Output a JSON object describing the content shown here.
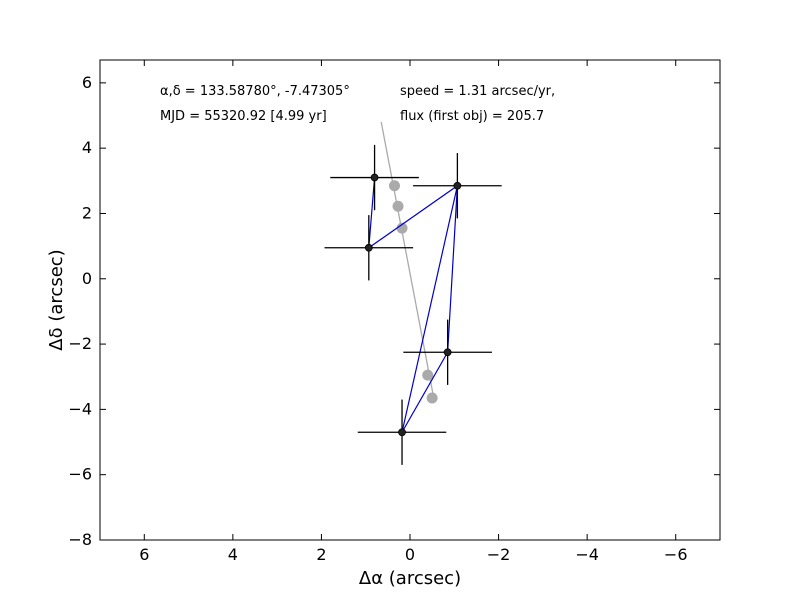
{
  "chart_data": {
    "type": "scatter",
    "xlabel": "Δα (arcsec)",
    "ylabel": "Δδ (arcsec)",
    "xlim": [
      7,
      -7
    ],
    "ylim": [
      -8,
      6.7
    ],
    "x_ticks": [
      6,
      4,
      2,
      0,
      -2,
      -4,
      -6
    ],
    "x_tick_labels": [
      "6",
      "4",
      "2",
      "0",
      "−2",
      "−4",
      "−6"
    ],
    "y_ticks": [
      -8,
      -6,
      -4,
      -2,
      0,
      2,
      4,
      6
    ],
    "y_tick_labels": [
      "−8",
      "−6",
      "−4",
      "−2",
      "0",
      "2",
      "4",
      "6"
    ],
    "grid": false,
    "annotations": {
      "coords": "α,δ = 133.58780°, -7.47305°",
      "mjd": "MJD = 55320.92 [4.99 yr]",
      "speed": "speed = 1.31 arcsec/yr,",
      "flux": "flux (first obj) = 205.7"
    },
    "observed": {
      "color": "#0000cc",
      "point_color": "#222222",
      "points": [
        {
          "x": 0.8,
          "y": 3.1,
          "xerr": 1.0,
          "yerr": 1.0
        },
        {
          "x": 0.93,
          "y": 0.95,
          "xerr": 1.0,
          "yerr": 1.0
        },
        {
          "x": -1.07,
          "y": 2.85,
          "xerr": 1.0,
          "yerr": 1.0
        },
        {
          "x": -0.85,
          "y": -2.25,
          "xerr": 1.0,
          "yerr": 1.0
        },
        {
          "x": 0.18,
          "y": -4.7,
          "xerr": 1.0,
          "yerr": 1.0
        }
      ],
      "path_order": [
        0,
        1,
        2,
        3,
        4,
        2
      ]
    },
    "model": {
      "color": "#aaaaaa",
      "line": [
        {
          "x": 0.65,
          "y": 4.8
        },
        {
          "x": -0.55,
          "y": -3.75
        }
      ],
      "points": [
        {
          "x": 0.35,
          "y": 2.85
        },
        {
          "x": 0.27,
          "y": 2.22
        },
        {
          "x": 0.18,
          "y": 1.55
        },
        {
          "x": -0.4,
          "y": -2.95
        },
        {
          "x": -0.5,
          "y": -3.65
        }
      ]
    }
  }
}
